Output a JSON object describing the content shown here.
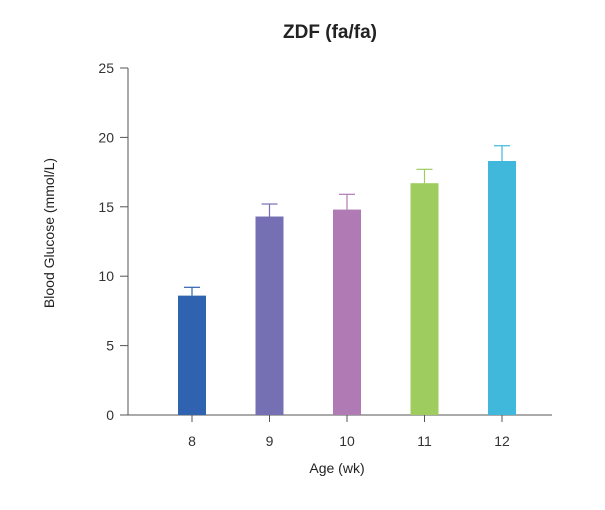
{
  "chart_data": {
    "type": "bar",
    "title": "ZDF (fa/fa)",
    "xlabel": "Age (wk)",
    "ylabel": "Blood Glucose (mmol/L)",
    "categories": [
      "8",
      "9",
      "10",
      "11",
      "12"
    ],
    "values": [
      8.6,
      14.3,
      14.8,
      16.7,
      18.3
    ],
    "error": [
      0.6,
      0.9,
      1.1,
      1.0,
      1.1
    ],
    "colors": [
      "#2f63b0",
      "#7570b3",
      "#b07ab5",
      "#9fcc5e",
      "#3fb8dc"
    ],
    "ylim": [
      0,
      25
    ],
    "yticks": [
      0,
      5,
      10,
      15,
      20,
      25
    ],
    "grid": false,
    "legend": "none"
  }
}
